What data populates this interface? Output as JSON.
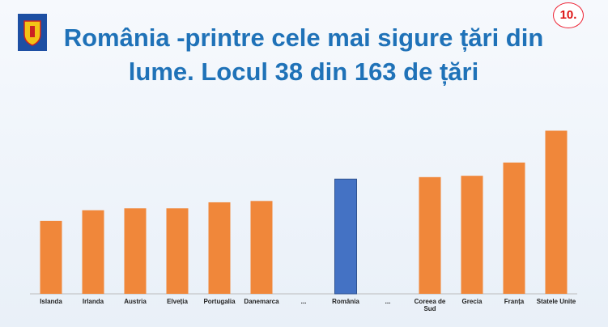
{
  "slide_number": "10.",
  "chart_data": {
    "type": "bar",
    "title": "România -printre cele mai sigure țări din lume. Locul 38 din 163 de țări",
    "categories": [
      "Islanda",
      "Irlanda",
      "Austria",
      "Elveția",
      "Portugalia",
      "Danemarca",
      "...",
      "România",
      "...",
      "Coreea de Sud",
      "Grecia",
      "Franța",
      "Statele Unite"
    ],
    "values": [
      1.1,
      1.26,
      1.29,
      1.29,
      1.38,
      1.4,
      null,
      1.73,
      null,
      1.76,
      1.78,
      1.98,
      2.46
    ],
    "colors": [
      "#f0873a",
      "#f0873a",
      "#f0873a",
      "#f0873a",
      "#f0873a",
      "#f0873a",
      null,
      "#4472c4",
      null,
      "#f0873a",
      "#f0873a",
      "#f0873a",
      "#f0873a"
    ],
    "ylim": [
      0,
      2.6
    ]
  }
}
